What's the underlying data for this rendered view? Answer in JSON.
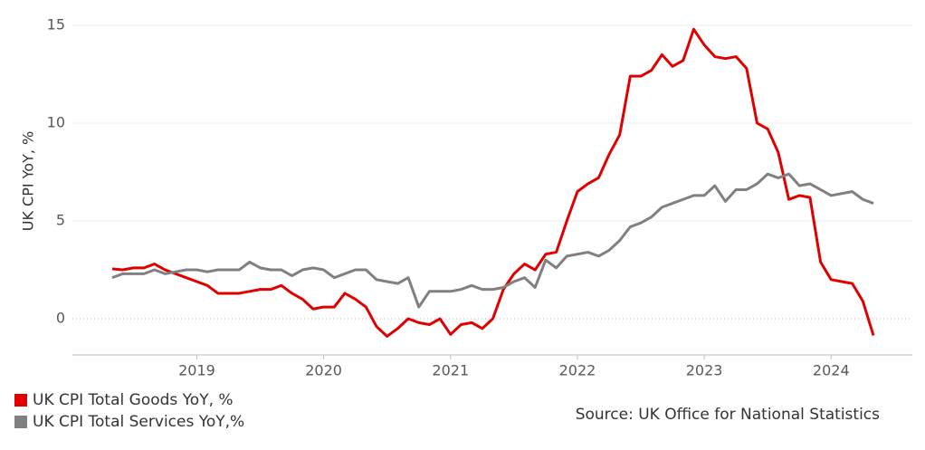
{
  "chart_data": {
    "type": "line",
    "y_label": "UK CPI YoY, %",
    "source": "Source: UK Office for National Statistics",
    "categories": [
      null,
      null,
      null,
      null,
      null,
      null,
      null,
      null,
      "2019",
      null,
      null,
      null,
      null,
      null,
      null,
      null,
      null,
      null,
      null,
      null,
      "2020",
      null,
      null,
      null,
      null,
      null,
      null,
      null,
      null,
      null,
      null,
      null,
      "2021",
      null,
      null,
      null,
      null,
      null,
      null,
      null,
      null,
      null,
      null,
      null,
      "2022",
      null,
      null,
      null,
      null,
      null,
      null,
      null,
      null,
      null,
      null,
      null,
      "2023",
      null,
      null,
      null,
      null,
      null,
      null,
      null,
      null,
      null,
      null,
      null,
      "2024",
      null,
      null,
      null,
      null
    ],
    "series": [
      {
        "name": "UK CPI Total Goods YoY, %",
        "color": "#e00000",
        "values": [
          2.55,
          2.5,
          2.6,
          2.6,
          2.8,
          2.5,
          2.3,
          2.1,
          1.9,
          1.7,
          1.3,
          1.3,
          1.3,
          1.4,
          1.5,
          1.5,
          1.7,
          1.3,
          1.0,
          0.5,
          0.6,
          0.6,
          1.3,
          1.0,
          0.6,
          -0.4,
          -0.9,
          -0.5,
          0.0,
          -0.2,
          -0.3,
          0.0,
          -0.8,
          -0.3,
          -0.2,
          -0.5,
          0.0,
          1.5,
          2.3,
          2.8,
          2.5,
          3.3,
          3.4,
          5.0,
          6.5,
          6.9,
          7.2,
          8.4,
          9.4,
          12.4,
          12.4,
          12.7,
          13.5,
          12.9,
          13.2,
          14.8,
          14.0,
          13.4,
          13.3,
          13.4,
          12.8,
          10.0,
          9.7,
          8.5,
          6.1,
          6.3,
          6.2,
          2.9,
          2.0,
          1.9,
          1.8,
          0.9,
          -0.85
        ]
      },
      {
        "name": "UK CPI Total Services YoY,%",
        "color": "#808080",
        "values": [
          2.1,
          2.3,
          2.3,
          2.3,
          2.5,
          2.3,
          2.4,
          2.5,
          2.5,
          2.4,
          2.5,
          2.5,
          2.5,
          2.9,
          2.6,
          2.5,
          2.5,
          2.2,
          2.5,
          2.6,
          2.5,
          2.1,
          2.3,
          2.5,
          2.5,
          2.0,
          1.9,
          1.8,
          2.1,
          0.6,
          1.4,
          1.4,
          1.4,
          1.5,
          1.7,
          1.5,
          1.5,
          1.6,
          1.9,
          2.1,
          1.6,
          3.0,
          2.6,
          3.2,
          3.3,
          3.4,
          3.2,
          3.5,
          4.0,
          4.7,
          4.9,
          5.2,
          5.7,
          5.9,
          6.1,
          6.3,
          6.3,
          6.8,
          6.0,
          6.6,
          6.6,
          6.9,
          7.4,
          7.2,
          7.4,
          6.8,
          6.9,
          6.6,
          6.3,
          6.4,
          6.5,
          6.1,
          5.9
        ]
      }
    ],
    "ylim": [
      -1.85,
      15.3
    ],
    "yticks": [
      0,
      5,
      10,
      15
    ],
    "grid": true
  }
}
